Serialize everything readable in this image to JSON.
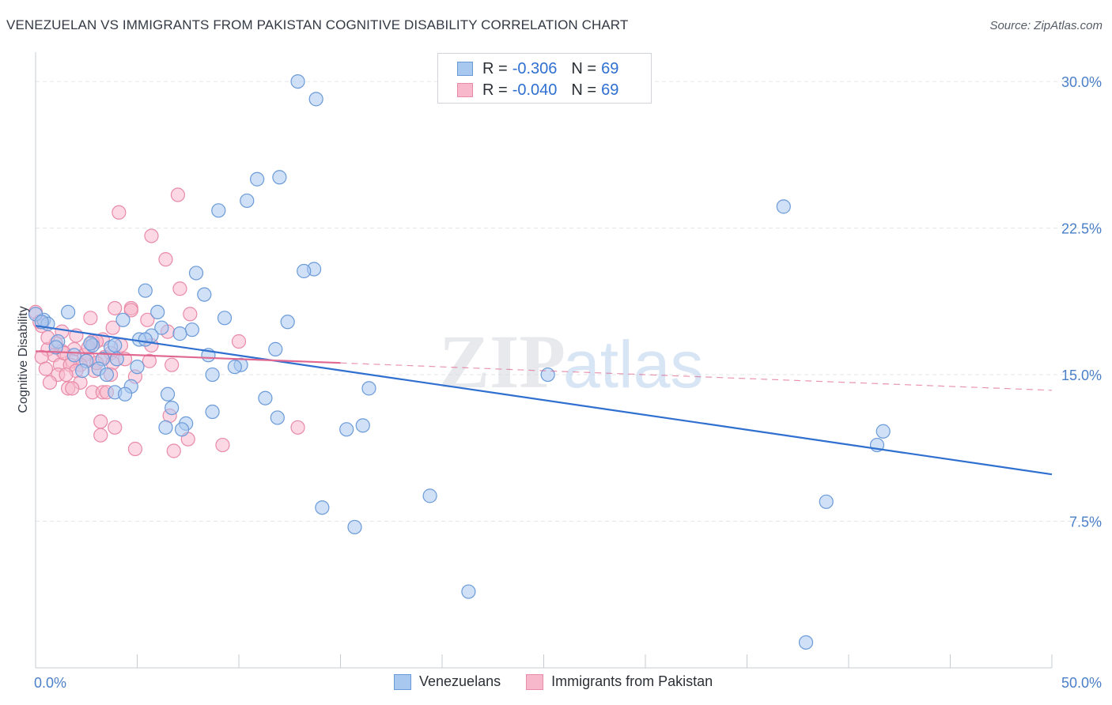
{
  "title": "VENEZUELAN VS IMMIGRANTS FROM PAKISTAN COGNITIVE DISABILITY CORRELATION CHART",
  "source": "Source: ZipAtlas.com",
  "watermark": "ZIPatlas",
  "legend_top": {
    "rows": [
      {
        "r_label": "R =",
        "r_value": "-0.306",
        "n_label": "N =",
        "n_value": "69"
      },
      {
        "r_label": "R =",
        "r_value": "-0.040",
        "n_label": "N =",
        "n_value": "69"
      }
    ]
  },
  "legend_bottom": {
    "items": [
      "Venezuelans",
      "Immigrants from Pakistan"
    ]
  },
  "colors": {
    "blue_fill": "#a9c8f0",
    "blue_stroke": "#6a9ad8",
    "blue_line": "#2f6fd0",
    "pink_fill": "#f7b8cc",
    "pink_stroke": "#e98aa8",
    "pink_line": "#e06890",
    "axis_text": "#4a7fc8",
    "grid": "#e3e6ea"
  },
  "chart_data": {
    "type": "scatter",
    "title": "VENEZUELAN VS IMMIGRANTS FROM PAKISTAN COGNITIVE DISABILITY CORRELATION CHART",
    "xlabel": "",
    "ylabel": "Cognitive Disability",
    "xlim": [
      0,
      50
    ],
    "ylim": [
      0,
      31.5
    ],
    "x_tick_labels": [
      "0.0%",
      "50.0%"
    ],
    "y_ticks": [
      7.5,
      15.0,
      22.5,
      30.0
    ],
    "y_tick_labels": [
      "7.5%",
      "15.0%",
      "22.5%",
      "30.0%"
    ],
    "grid": true,
    "legend_position": "bottom-center",
    "series": [
      {
        "name": "Venezuelans",
        "color": "#6a9ad8",
        "points": [
          [
            12.9,
            30.0
          ],
          [
            13.8,
            29.1
          ],
          [
            10.9,
            25.0
          ],
          [
            12.0,
            25.1
          ],
          [
            10.4,
            23.9
          ],
          [
            9.0,
            23.4
          ],
          [
            36.8,
            23.6
          ],
          [
            13.7,
            20.4
          ],
          [
            13.2,
            20.3
          ],
          [
            7.9,
            20.2
          ],
          [
            5.4,
            19.3
          ],
          [
            8.3,
            19.1
          ],
          [
            1.6,
            18.2
          ],
          [
            6.0,
            18.2
          ],
          [
            9.3,
            17.9
          ],
          [
            4.3,
            17.8
          ],
          [
            0.4,
            17.8
          ],
          [
            0.6,
            17.6
          ],
          [
            12.4,
            17.7
          ],
          [
            6.2,
            17.4
          ],
          [
            7.7,
            17.3
          ],
          [
            7.1,
            17.1
          ],
          [
            5.7,
            17.0
          ],
          [
            1.1,
            16.7
          ],
          [
            5.1,
            16.8
          ],
          [
            5.4,
            16.8
          ],
          [
            2.8,
            16.5
          ],
          [
            3.7,
            16.4
          ],
          [
            1.0,
            16.4
          ],
          [
            11.8,
            16.3
          ],
          [
            1.9,
            16.0
          ],
          [
            8.5,
            16.0
          ],
          [
            4.0,
            15.8
          ],
          [
            3.3,
            15.8
          ],
          [
            2.5,
            15.7
          ],
          [
            10.1,
            15.5
          ],
          [
            5.0,
            15.4
          ],
          [
            3.1,
            15.3
          ],
          [
            2.3,
            15.2
          ],
          [
            8.7,
            15.0
          ],
          [
            3.5,
            15.0
          ],
          [
            25.2,
            15.0
          ],
          [
            4.7,
            14.4
          ],
          [
            16.4,
            14.3
          ],
          [
            3.9,
            14.1
          ],
          [
            4.4,
            14.0
          ],
          [
            6.5,
            14.0
          ],
          [
            11.3,
            13.8
          ],
          [
            6.7,
            13.3
          ],
          [
            8.7,
            13.1
          ],
          [
            11.9,
            12.8
          ],
          [
            16.1,
            12.4
          ],
          [
            6.4,
            12.3
          ],
          [
            7.4,
            12.5
          ],
          [
            15.3,
            12.2
          ],
          [
            7.2,
            12.2
          ],
          [
            41.7,
            12.1
          ],
          [
            41.4,
            11.4
          ],
          [
            19.4,
            8.8
          ],
          [
            14.1,
            8.2
          ],
          [
            38.9,
            8.5
          ],
          [
            15.7,
            7.2
          ],
          [
            21.3,
            3.9
          ],
          [
            37.9,
            1.3
          ],
          [
            0.0,
            18.1
          ],
          [
            0.3,
            17.7
          ],
          [
            2.7,
            16.6
          ],
          [
            3.9,
            16.5
          ],
          [
            9.8,
            15.4
          ]
        ]
      },
      {
        "name": "Immigrants from Pakistan",
        "color": "#e98aa8",
        "points": [
          [
            7.0,
            24.2
          ],
          [
            4.1,
            23.3
          ],
          [
            5.7,
            22.1
          ],
          [
            6.4,
            20.9
          ],
          [
            7.1,
            19.4
          ],
          [
            3.9,
            18.4
          ],
          [
            4.7,
            18.4
          ],
          [
            0.0,
            18.2
          ],
          [
            4.7,
            18.3
          ],
          [
            7.6,
            18.1
          ],
          [
            2.7,
            17.9
          ],
          [
            5.5,
            17.8
          ],
          [
            0.3,
            17.5
          ],
          [
            3.8,
            17.4
          ],
          [
            1.3,
            17.2
          ],
          [
            6.5,
            17.2
          ],
          [
            2.0,
            17.0
          ],
          [
            10.0,
            16.7
          ],
          [
            3.3,
            16.8
          ],
          [
            2.8,
            16.7
          ],
          [
            1.0,
            16.6
          ],
          [
            3.0,
            16.7
          ],
          [
            5.7,
            16.5
          ],
          [
            4.2,
            16.5
          ],
          [
            0.6,
            16.3
          ],
          [
            1.9,
            16.3
          ],
          [
            1.3,
            16.2
          ],
          [
            0.9,
            16.0
          ],
          [
            3.7,
            16.1
          ],
          [
            2.4,
            16.0
          ],
          [
            0.3,
            15.9
          ],
          [
            3.4,
            15.9
          ],
          [
            2.6,
            15.8
          ],
          [
            1.8,
            15.7
          ],
          [
            3.8,
            15.6
          ],
          [
            5.6,
            15.7
          ],
          [
            1.2,
            15.5
          ],
          [
            2.2,
            15.5
          ],
          [
            1.7,
            15.5
          ],
          [
            6.7,
            15.5
          ],
          [
            0.5,
            15.3
          ],
          [
            2.0,
            15.2
          ],
          [
            2.9,
            15.2
          ],
          [
            3.7,
            15.0
          ],
          [
            1.1,
            15.0
          ],
          [
            1.5,
            15.0
          ],
          [
            4.9,
            14.9
          ],
          [
            0.7,
            14.6
          ],
          [
            2.2,
            14.6
          ],
          [
            1.6,
            14.3
          ],
          [
            1.8,
            14.3
          ],
          [
            2.8,
            14.1
          ],
          [
            3.3,
            14.1
          ],
          [
            3.5,
            14.1
          ],
          [
            6.6,
            12.9
          ],
          [
            3.2,
            12.6
          ],
          [
            12.9,
            12.3
          ],
          [
            3.9,
            12.3
          ],
          [
            7.5,
            11.7
          ],
          [
            3.2,
            11.9
          ],
          [
            9.2,
            11.4
          ],
          [
            4.9,
            11.2
          ],
          [
            6.8,
            11.1
          ],
          [
            0.2,
            17.7
          ],
          [
            0.6,
            16.9
          ],
          [
            2.6,
            16.4
          ],
          [
            4.4,
            15.8
          ],
          [
            1.4,
            16.1
          ],
          [
            3.0,
            15.6
          ]
        ]
      }
    ],
    "trend_lines": [
      {
        "series": "Venezuelans",
        "x": [
          0,
          50
        ],
        "y": [
          17.5,
          9.9
        ],
        "style": "solid"
      },
      {
        "series": "Immigrants from Pakistan",
        "x": [
          0,
          15
        ],
        "y": [
          16.2,
          15.6
        ],
        "style": "solid"
      },
      {
        "series": "Immigrants from Pakistan",
        "x": [
          15,
          50
        ],
        "y": [
          15.6,
          14.2
        ],
        "style": "dashed"
      }
    ]
  }
}
